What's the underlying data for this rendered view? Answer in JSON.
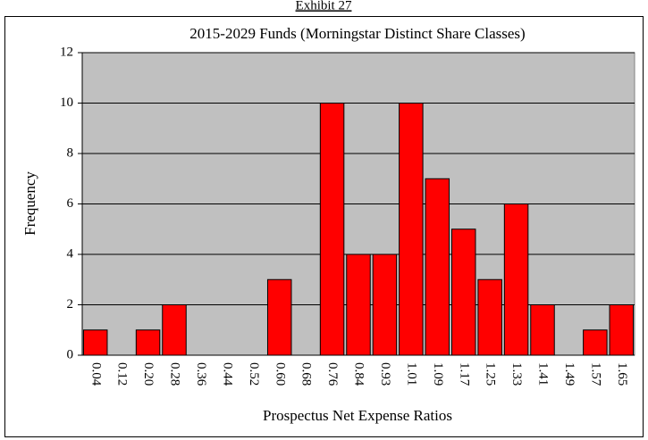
{
  "header": "Exhibit 27",
  "chart_data": {
    "type": "bar",
    "title": "2015-2029 Funds (Morningstar Distinct Share Classes)",
    "x_label": "Prospectus Net Expense Ratios",
    "y_label": "Frequency",
    "categories": [
      "0.04",
      "0.12",
      "0.20",
      "0.28",
      "0.36",
      "0.44",
      "0.52",
      "0.60",
      "0.68",
      "0.76",
      "0.84",
      "0.93",
      "1.01",
      "1.09",
      "1.17",
      "1.25",
      "1.33",
      "1.41",
      "1.49",
      "1.57",
      "1.65"
    ],
    "values": [
      1,
      0,
      1,
      2,
      0,
      0,
      0,
      3,
      0,
      10,
      4,
      4,
      10,
      7,
      5,
      3,
      6,
      2,
      0,
      1,
      2
    ],
    "color": "#ff0000",
    "ylim": [
      0,
      12
    ],
    "yticks": [
      0,
      2,
      4,
      6,
      8,
      10,
      12
    ],
    "grid": true
  }
}
